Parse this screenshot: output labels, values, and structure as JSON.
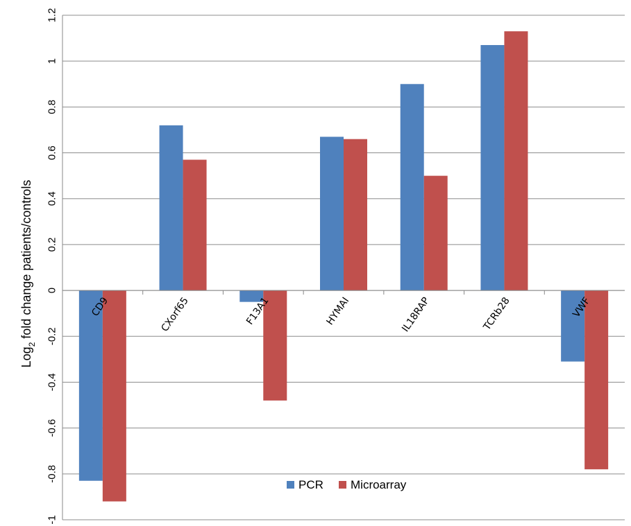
{
  "chart_data": {
    "type": "bar",
    "ylabel_main": "Log",
    "ylabel_sub": "2",
    "ylabel_rest": " fold change patients/controls",
    "categories": [
      "CD9",
      "CXorf65",
      "F13A1",
      "HYMAI",
      "IL18RAP",
      "TCRb28",
      "VWF"
    ],
    "series": [
      {
        "name": "PCR",
        "color": "#4F81BD",
        "values": [
          -0.83,
          0.72,
          -0.05,
          0.67,
          0.9,
          1.07,
          -0.31
        ]
      },
      {
        "name": "Microarray",
        "color": "#C0504D",
        "values": [
          -0.92,
          0.57,
          -0.48,
          0.66,
          0.5,
          1.13,
          -0.78
        ]
      }
    ],
    "ylim": [
      -1,
      1.2
    ],
    "yticks": [
      "1.2",
      "1",
      "0.8",
      "0.6",
      "0.4",
      "0.2",
      "0",
      "-0.2",
      "-0.4",
      "-0.6",
      "-0.8",
      "-1"
    ],
    "ytick_values": [
      1.2,
      1,
      0.8,
      0.6,
      0.4,
      0.2,
      0,
      -0.2,
      -0.4,
      -0.6,
      -0.8,
      -1
    ],
    "grid": true,
    "legend_position": "bottom-center"
  }
}
